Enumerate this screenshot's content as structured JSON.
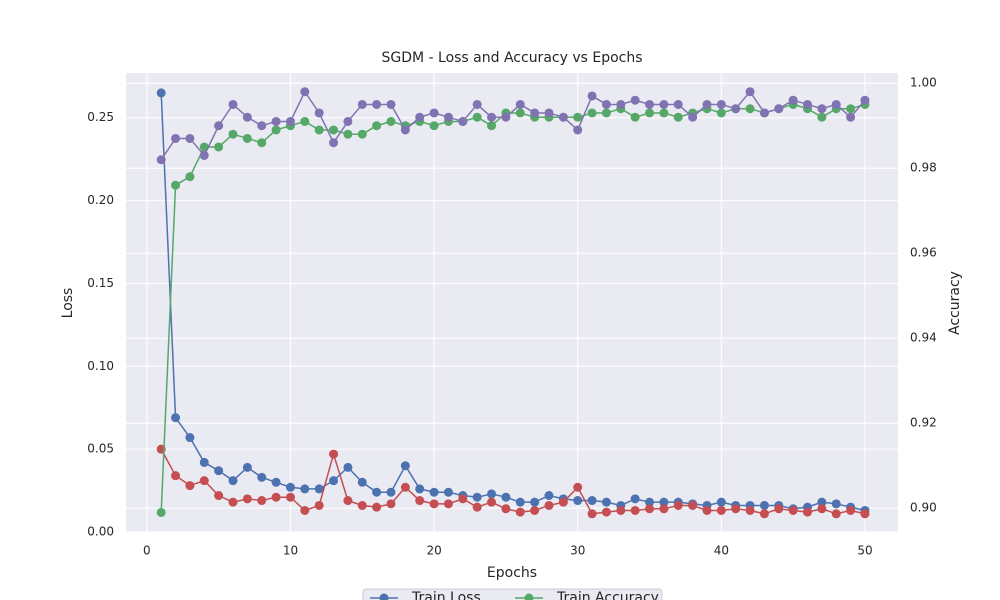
{
  "chart_data": {
    "type": "line",
    "title": "SGDM - Loss and Accuracy vs Epochs",
    "x_label": "Epochs",
    "y_label": "Loss",
    "y2_label": "Accuracy",
    "x": [
      1,
      2,
      3,
      4,
      5,
      6,
      7,
      8,
      9,
      10,
      11,
      12,
      13,
      14,
      15,
      16,
      17,
      18,
      19,
      20,
      21,
      22,
      23,
      24,
      25,
      26,
      27,
      28,
      29,
      30,
      31,
      32,
      33,
      34,
      35,
      36,
      37,
      38,
      39,
      40,
      41,
      42,
      43,
      44,
      45,
      46,
      47,
      48,
      49,
      50
    ],
    "xlim": [
      -1.45,
      52.3
    ],
    "xticks": [
      0,
      10,
      20,
      30,
      40,
      50
    ],
    "ylim": [
      0,
      0.277
    ],
    "yticks": [
      {
        "value": 0,
        "label": "0.00"
      },
      {
        "value": 0.05,
        "label": "0.05"
      },
      {
        "value": 0.1,
        "label": "0.10"
      },
      {
        "value": 0.15,
        "label": "0.15"
      },
      {
        "value": 0.2,
        "label": "0.20"
      },
      {
        "value": 0.25,
        "label": "0.25"
      }
    ],
    "y2lim": [
      0.8944,
      1.0024
    ],
    "y2ticks": [
      {
        "value": 0.9,
        "label": "0.90"
      },
      {
        "value": 0.92,
        "label": "0.92"
      },
      {
        "value": 0.94,
        "label": "0.94"
      },
      {
        "value": 0.96,
        "label": "0.96"
      },
      {
        "value": 0.98,
        "label": "0.98"
      },
      {
        "value": 1.0,
        "label": "1.00"
      }
    ],
    "grid": true,
    "legend": "lower center",
    "series": [
      {
        "name": "Train Loss",
        "color": "#4c72b0",
        "values": [
          0.265,
          0.069,
          0.057,
          0.042,
          0.037,
          0.031,
          0.039,
          0.033,
          0.03,
          0.027,
          0.026,
          0.026,
          0.031,
          0.039,
          0.03,
          0.024,
          0.024,
          0.04,
          0.026,
          0.024,
          0.024,
          0.022,
          0.021,
          0.023,
          0.021,
          0.018,
          0.018,
          0.022,
          0.02,
          0.019,
          0.019,
          0.018,
          0.016,
          0.02,
          0.018,
          0.018,
          0.018,
          0.017,
          0.016,
          0.018,
          0.016,
          0.016,
          0.016,
          0.016,
          0.014,
          0.015,
          0.018,
          0.017,
          0.015,
          0.013
        ]
      },
      {
        "color": "#c44e52",
        "values": [
          0.05,
          0.034,
          0.028,
          0.031,
          0.022,
          0.018,
          0.02,
          0.019,
          0.021,
          0.021,
          0.013,
          0.016,
          0.047,
          0.019,
          0.016,
          0.015,
          0.017,
          0.027,
          0.019,
          0.017,
          0.017,
          0.02,
          0.015,
          0.018,
          0.014,
          0.012,
          0.013,
          0.016,
          0.018,
          0.027,
          0.011,
          0.012,
          0.013,
          0.013,
          0.014,
          0.014,
          0.016,
          0.016,
          0.013,
          0.013,
          0.014,
          0.013,
          0.011,
          0.014,
          0.013,
          0.012,
          0.014,
          0.011,
          0.013,
          0.011
        ]
      },
      {
        "name": "Train Accuracy",
        "color": "#55a868",
        "axis": "y2",
        "values": [
          0.899,
          0.976,
          0.978,
          0.985,
          0.985,
          0.988,
          0.987,
          0.986,
          0.989,
          0.99,
          0.991,
          0.989,
          0.989,
          0.988,
          0.988,
          0.99,
          0.991,
          0.99,
          0.991,
          0.99,
          0.991,
          0.991,
          0.992,
          0.99,
          0.993,
          0.993,
          0.992,
          0.992,
          0.992,
          0.992,
          0.993,
          0.993,
          0.994,
          0.992,
          0.993,
          0.993,
          0.992,
          0.993,
          0.994,
          0.993,
          0.994,
          0.994,
          0.993,
          0.994,
          0.995,
          0.994,
          0.992,
          0.994,
          0.994,
          0.995
        ]
      },
      {
        "color": "#8172b2",
        "axis": "y2",
        "values": [
          0.982,
          0.987,
          0.987,
          0.983,
          0.99,
          0.995,
          0.992,
          0.99,
          0.991,
          0.991,
          0.998,
          0.993,
          0.986,
          0.991,
          0.995,
          0.995,
          0.995,
          0.989,
          0.992,
          0.993,
          0.992,
          0.991,
          0.995,
          0.992,
          0.992,
          0.995,
          0.993,
          0.993,
          0.992,
          0.989,
          0.997,
          0.995,
          0.995,
          0.996,
          0.995,
          0.995,
          0.995,
          0.992,
          0.995,
          0.995,
          0.994,
          0.998,
          0.993,
          0.994,
          0.996,
          0.995,
          0.994,
          0.995,
          0.992,
          0.996
        ]
      }
    ]
  }
}
